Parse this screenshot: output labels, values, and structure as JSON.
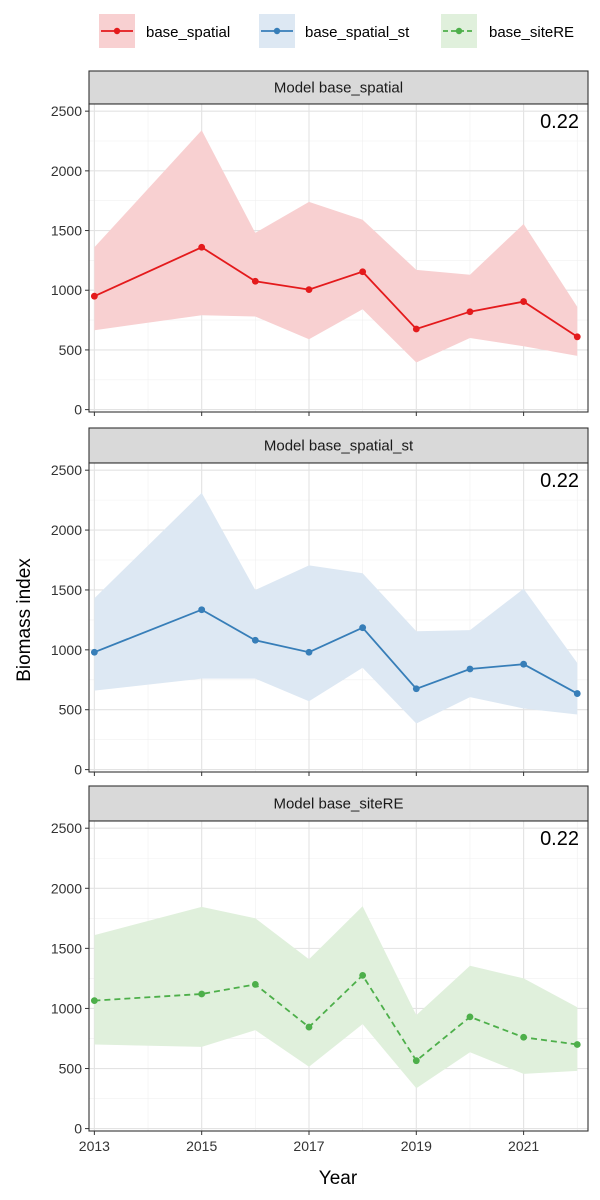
{
  "chart_data": {
    "type": "line",
    "xlabel": "Year",
    "ylabel": "Biomass index",
    "x": [
      2013,
      2015,
      2016,
      2017,
      2018,
      2019,
      2020,
      2021,
      2022
    ],
    "x_ticks": [
      2013,
      2015,
      2017,
      2019,
      2021
    ],
    "y_ticks": [
      0,
      500,
      1000,
      1500,
      2000,
      2500
    ],
    "xlim": [
      2012.9,
      2022.2
    ],
    "ylim": [
      -20,
      2560
    ],
    "grid": true,
    "legend_position": "top",
    "legend": [
      {
        "name": "base_spatial",
        "color": "#e41a1c",
        "dash": "solid"
      },
      {
        "name": "base_spatial_st",
        "color": "#377eb8",
        "dash": "solid"
      },
      {
        "name": "base_siteRE",
        "color": "#4daf4a",
        "dash": "dashed"
      }
    ],
    "panels": [
      {
        "strip": "Model base_spatial",
        "annotation": "0.22",
        "series": "base_spatial",
        "color": "#e41a1c",
        "fill": "#f8d0d1",
        "dash": "solid",
        "values": [
          950,
          1360,
          1075,
          1005,
          1155,
          675,
          820,
          905,
          610
        ],
        "lower": [
          665,
          790,
          780,
          590,
          840,
          395,
          600,
          530,
          450
        ],
        "upper": [
          1360,
          2340,
          1480,
          1740,
          1590,
          1170,
          1130,
          1555,
          860
        ]
      },
      {
        "strip": "Model base_spatial_st",
        "annotation": "0.22",
        "series": "base_spatial_st",
        "color": "#377eb8",
        "fill": "#dde8f3",
        "dash": "solid",
        "values": [
          980,
          1335,
          1080,
          980,
          1185,
          675,
          840,
          880,
          635
        ],
        "lower": [
          660,
          760,
          760,
          570,
          850,
          385,
          605,
          510,
          460
        ],
        "upper": [
          1430,
          2310,
          1500,
          1705,
          1640,
          1155,
          1165,
          1510,
          890
        ]
      },
      {
        "strip": "Model base_siteRE",
        "annotation": "0.22",
        "series": "base_siteRE",
        "color": "#4daf4a",
        "fill": "#e0f0dc",
        "dash": "dashed",
        "values": [
          1065,
          1120,
          1200,
          845,
          1275,
          565,
          930,
          760,
          700
        ],
        "lower": [
          700,
          680,
          820,
          515,
          870,
          335,
          635,
          455,
          480
        ],
        "upper": [
          1610,
          1845,
          1750,
          1410,
          1850,
          945,
          1355,
          1250,
          1010
        ]
      }
    ]
  }
}
